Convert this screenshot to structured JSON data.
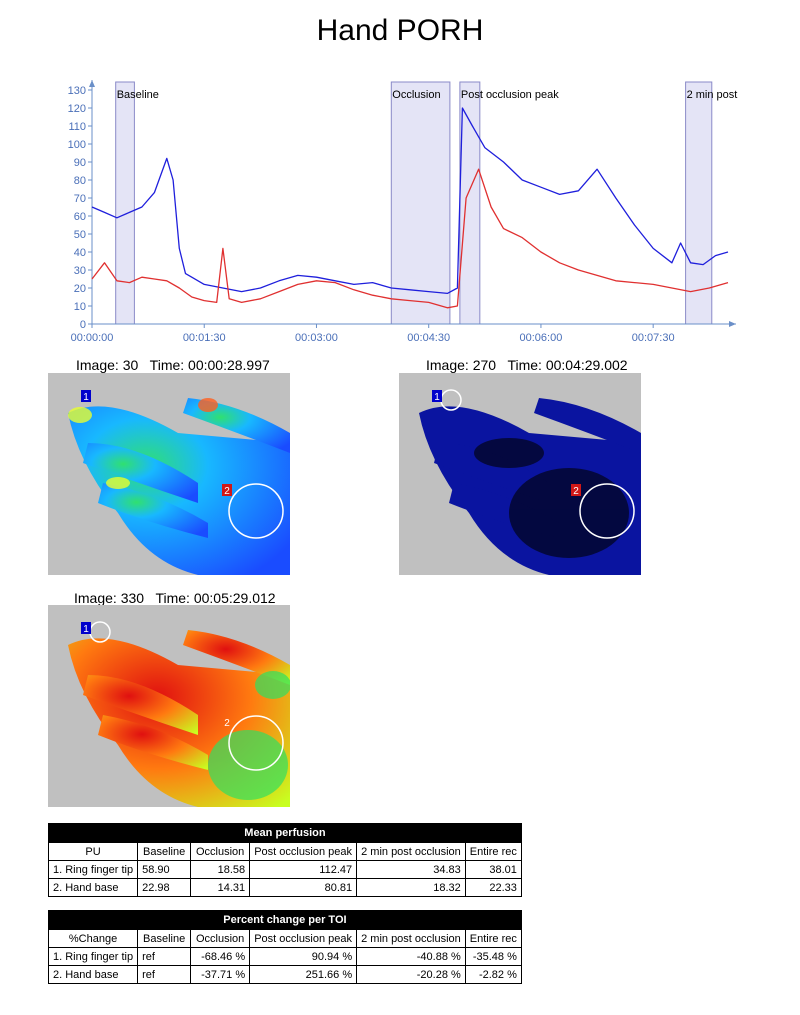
{
  "title": "Hand PORH",
  "chart_data": {
    "type": "line",
    "x_unit": "time (hh:mm:ss)",
    "xlim": [
      "00:00:00",
      "00:08:30"
    ],
    "ylim": [
      0,
      130
    ],
    "xticks": [
      "00:00:00",
      "00:01:30",
      "00:03:00",
      "00:04:30",
      "00:06:00",
      "00:07:30"
    ],
    "yticks": [
      0,
      10,
      20,
      30,
      40,
      50,
      60,
      70,
      80,
      90,
      100,
      110,
      120,
      130
    ],
    "regions": [
      {
        "label": "Baseline",
        "start": "00:00:19",
        "end": "00:00:34"
      },
      {
        "label": "Occlusion",
        "start": "00:04:00",
        "end": "00:04:47"
      },
      {
        "label": "Post occlusion peak",
        "start": "00:04:55",
        "end": "00:05:11"
      },
      {
        "label": "2 min post",
        "start": "00:07:56",
        "end": "00:08:17"
      }
    ],
    "series": [
      {
        "color": "#1f1fdc",
        "x": [
          "00:00:00",
          "00:00:10",
          "00:00:20",
          "00:00:30",
          "00:00:40",
          "00:00:50",
          "00:01:00",
          "00:01:05",
          "00:01:10",
          "00:01:15",
          "00:01:20",
          "00:01:30",
          "00:01:45",
          "00:02:00",
          "00:02:15",
          "00:02:30",
          "00:02:45",
          "00:03:00",
          "00:03:15",
          "00:03:30",
          "00:03:45",
          "00:04:00",
          "00:04:15",
          "00:04:30",
          "00:04:45",
          "00:04:53",
          "00:04:57",
          "00:05:05",
          "00:05:15",
          "00:05:30",
          "00:05:45",
          "00:06:00",
          "00:06:15",
          "00:06:30",
          "00:06:45",
          "00:07:00",
          "00:07:15",
          "00:07:30",
          "00:07:45",
          "00:07:52",
          "00:08:00",
          "00:08:10",
          "00:08:20",
          "00:08:30"
        ],
        "y": [
          65,
          62,
          59,
          62,
          65,
          73,
          92,
          80,
          42,
          28,
          26,
          22,
          20,
          18,
          20,
          24,
          27,
          26,
          24,
          22,
          23,
          20,
          19,
          18,
          17,
          20,
          120,
          110,
          98,
          90,
          80,
          76,
          72,
          74,
          86,
          70,
          55,
          42,
          34,
          45,
          34,
          33,
          38,
          40
        ]
      },
      {
        "color": "#e03030",
        "x": [
          "00:00:00",
          "00:00:10",
          "00:00:20",
          "00:00:30",
          "00:00:40",
          "00:00:50",
          "00:01:00",
          "00:01:10",
          "00:01:20",
          "00:01:30",
          "00:01:40",
          "00:01:45",
          "00:01:50",
          "00:02:00",
          "00:02:15",
          "00:02:30",
          "00:02:45",
          "00:03:00",
          "00:03:15",
          "00:03:30",
          "00:03:45",
          "00:04:00",
          "00:04:15",
          "00:04:30",
          "00:04:45",
          "00:04:53",
          "00:05:00",
          "00:05:10",
          "00:05:20",
          "00:05:30",
          "00:05:45",
          "00:06:00",
          "00:06:15",
          "00:06:30",
          "00:06:45",
          "00:07:00",
          "00:07:15",
          "00:07:30",
          "00:07:45",
          "00:08:00",
          "00:08:15",
          "00:08:30"
        ],
        "y": [
          25,
          34,
          24,
          23,
          26,
          25,
          24,
          20,
          15,
          13,
          12,
          42,
          14,
          12,
          14,
          18,
          22,
          24,
          23,
          19,
          16,
          14,
          13,
          12,
          9,
          10,
          70,
          86,
          65,
          53,
          48,
          40,
          34,
          30,
          27,
          24,
          23,
          22,
          20,
          18,
          20,
          23
        ]
      }
    ]
  },
  "images": [
    {
      "caption": "Image: 30   Time: 00:00:28.997",
      "roi1": "1",
      "roi2": "2"
    },
    {
      "caption": "Image: 270   Time: 00:04:29.002",
      "roi1": "1",
      "roi2": "2"
    },
    {
      "caption": "Image: 330   Time: 00:05:29.012",
      "roi1": "1",
      "roi2": "2"
    }
  ],
  "colors": {
    "baseline_image": "#1f5cff",
    "occlusion_image": "#0a14a0",
    "peak_image": "#e84a10",
    "background": "#c0c0c0",
    "roi1": "#0000cc",
    "roi2": "#d01818"
  },
  "mean_table": {
    "title": "Mean perfusion",
    "headers": [
      "PU",
      "Baseline",
      "Occlusion",
      "Post occlusion peak",
      "2 min post occlusion",
      "Entire rec"
    ],
    "rows": [
      [
        "1. Ring finger tip",
        "58.90",
        "18.58",
        "112.47",
        "34.83",
        "38.01"
      ],
      [
        "2. Hand base",
        "22.98",
        "14.31",
        "80.81",
        "18.32",
        "22.33"
      ]
    ]
  },
  "pct_table": {
    "title": "Percent change per TOI",
    "headers": [
      "%Change",
      "Baseline",
      "Occlusion",
      "Post occlusion peak",
      "2 min post occlusion",
      "Entire rec"
    ],
    "rows": [
      [
        "1. Ring finger tip",
        "ref",
        "-68.46 %",
        "90.94 %",
        "-40.88 %",
        "-35.48 %"
      ],
      [
        "2. Hand base",
        "ref",
        "-37.71 %",
        "251.66 %",
        "-20.28 %",
        "-2.82 %"
      ]
    ]
  }
}
